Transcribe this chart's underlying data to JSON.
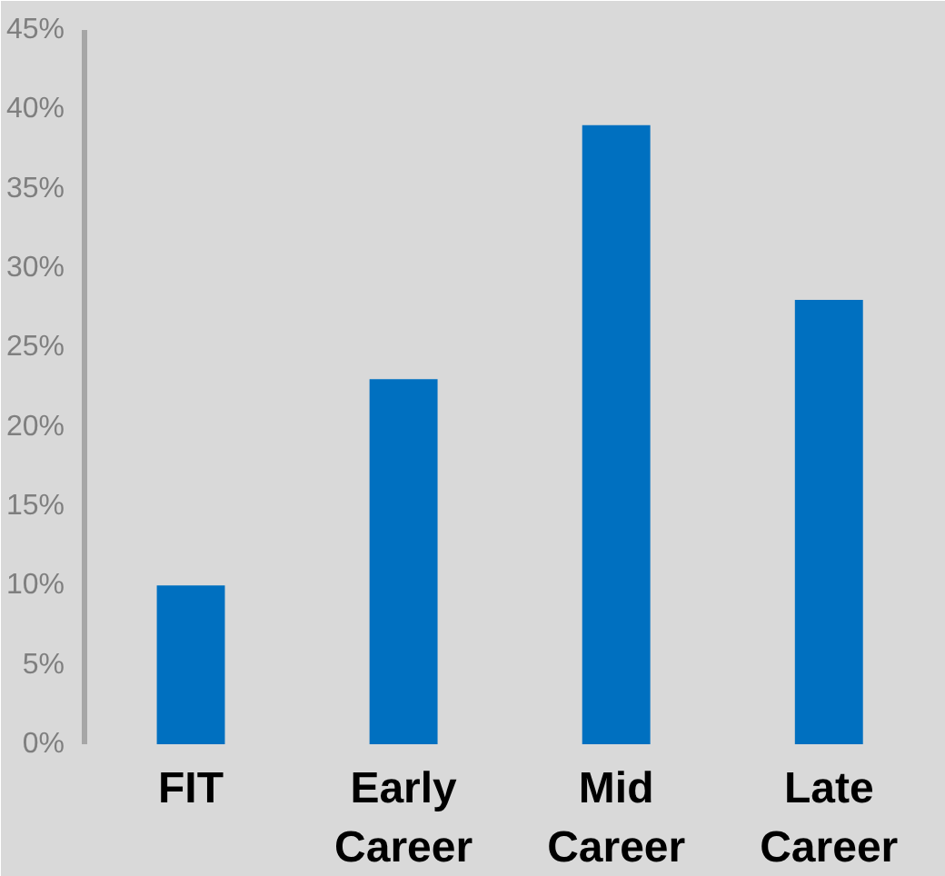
{
  "chart_data": {
    "type": "bar",
    "categories": [
      "FIT",
      "Early Career",
      "Mid Career",
      "Late Career"
    ],
    "values": [
      10,
      23,
      39,
      28
    ],
    "color": "#0070c0",
    "ylim": [
      0,
      45
    ],
    "yticks": [
      {
        "value": 0,
        "label": "0%"
      },
      {
        "value": 5,
        "label": "5%"
      },
      {
        "value": 10,
        "label": "10%"
      },
      {
        "value": 15,
        "label": "15%"
      },
      {
        "value": 20,
        "label": "20%"
      },
      {
        "value": 25,
        "label": "25%"
      },
      {
        "value": 30,
        "label": "30%"
      },
      {
        "value": 35,
        "label": "35%"
      },
      {
        "value": 40,
        "label": "40%"
      },
      {
        "value": 45,
        "label": "45%"
      }
    ],
    "grid": false
  }
}
